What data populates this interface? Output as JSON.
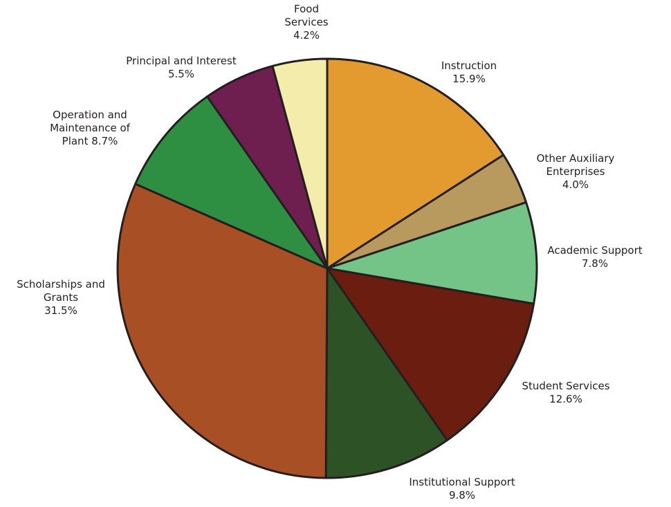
{
  "chart_data": {
    "type": "pie",
    "categories": [
      "Instruction",
      "Other Auxiliary Enterprises",
      "Academic Support",
      "Student Services",
      "Institutional Support",
      "Scholarships and Grants",
      "Operation and Maintenance of Plant",
      "Principal and Interest",
      "Food Services"
    ],
    "values": [
      15.9,
      4.0,
      7.8,
      12.6,
      9.8,
      31.5,
      8.7,
      5.5,
      4.2
    ],
    "value_labels": [
      "15.9%",
      "4.0%",
      "7.8%",
      "12.6%",
      "9.8%",
      "31.5%",
      "8.7%",
      "5.5%",
      "4.2%"
    ],
    "colors": [
      "#e39a2e",
      "#b89a5e",
      "#74c487",
      "#6b1e10",
      "#2d5225",
      "#a94f25",
      "#2e8e42",
      "#6e1f4f",
      "#f3ecaa"
    ]
  }
}
